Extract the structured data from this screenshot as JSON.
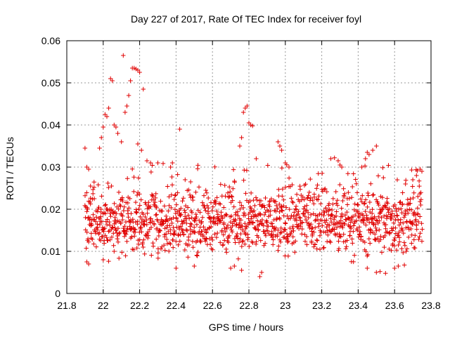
{
  "chart_data": {
    "type": "scatter",
    "title": "Day 227 of 2017, Rate Of TEC Index for receiver foyl",
    "xlabel": "GPS time / hours",
    "ylabel": "ROTI / TECUs",
    "xlim": [
      21.8,
      23.8
    ],
    "ylim": [
      0,
      0.06
    ],
    "xticks": [
      "21.8",
      "22",
      "22.2",
      "22.4",
      "22.6",
      "22.8",
      "23",
      "23.2",
      "23.4",
      "23.6",
      "23.8"
    ],
    "yticks": [
      "0",
      "0.01",
      "0.02",
      "0.03",
      "0.04",
      "0.05",
      "0.06"
    ],
    "grid": true,
    "marker": "+",
    "marker_color": "#e00000",
    "series": [
      {
        "name": "ROTI",
        "x_start": 21.9,
        "x_end": 23.75,
        "points": [
          [
            21.9,
            0.0345
          ],
          [
            21.91,
            0.03
          ],
          [
            21.92,
            0.0295
          ],
          [
            21.91,
            0.0075
          ],
          [
            21.92,
            0.007
          ],
          [
            21.93,
            0.0255
          ],
          [
            21.95,
            0.0252
          ],
          [
            21.98,
            0.0345
          ],
          [
            21.99,
            0.037
          ],
          [
            22.0,
            0.0395
          ],
          [
            22.01,
            0.0425
          ],
          [
            22.02,
            0.042
          ],
          [
            22.03,
            0.044
          ],
          [
            22.04,
            0.051
          ],
          [
            22.05,
            0.0505
          ],
          [
            22.06,
            0.04
          ],
          [
            22.07,
            0.0395
          ],
          [
            22.08,
            0.038
          ],
          [
            22.1,
            0.036
          ],
          [
            22.11,
            0.0565
          ],
          [
            22.12,
            0.043
          ],
          [
            22.13,
            0.0445
          ],
          [
            22.14,
            0.047
          ],
          [
            22.15,
            0.0505
          ],
          [
            22.16,
            0.0535
          ],
          [
            22.17,
            0.0535
          ],
          [
            22.18,
            0.0533
          ],
          [
            22.19,
            0.053
          ],
          [
            22.2,
            0.0525
          ],
          [
            22.22,
            0.0485
          ],
          [
            22.19,
            0.0355
          ],
          [
            22.21,
            0.034
          ],
          [
            22.24,
            0.0315
          ],
          [
            22.26,
            0.031
          ],
          [
            22.3,
            0.031
          ],
          [
            22.37,
            0.03
          ],
          [
            22.38,
            0.031
          ],
          [
            22.42,
            0.039
          ],
          [
            22.45,
            0.027
          ],
          [
            22.48,
            0.0265
          ],
          [
            22.77,
            0.043
          ],
          [
            22.78,
            0.044
          ],
          [
            22.79,
            0.0445
          ],
          [
            22.8,
            0.0405
          ],
          [
            22.81,
            0.04
          ],
          [
            22.82,
            0.0398
          ],
          [
            22.76,
            0.037
          ],
          [
            22.75,
            0.035
          ],
          [
            22.84,
            0.032
          ],
          [
            22.96,
            0.036
          ],
          [
            22.97,
            0.035
          ],
          [
            22.98,
            0.034
          ],
          [
            23.0,
            0.031
          ],
          [
            23.02,
            0.03
          ],
          [
            23.25,
            0.032
          ],
          [
            23.27,
            0.0322
          ],
          [
            23.29,
            0.0315
          ],
          [
            23.3,
            0.0305
          ],
          [
            23.31,
            0.03
          ],
          [
            23.45,
            0.0335
          ],
          [
            23.46,
            0.033
          ],
          [
            23.48,
            0.034
          ],
          [
            23.5,
            0.035
          ],
          [
            23.44,
            0.032
          ],
          [
            23.42,
            0.03
          ],
          [
            23.74,
            0.0295
          ],
          [
            23.75,
            0.029
          ],
          [
            23.72,
            0.028
          ],
          [
            23.7,
            0.027
          ],
          [
            23.66,
            0.026
          ],
          [
            22.86,
            0.004
          ],
          [
            22.87,
            0.005
          ],
          [
            22.76,
            0.0055
          ],
          [
            22.7,
            0.006
          ],
          [
            22.72,
            0.0065
          ],
          [
            22.4,
            0.006
          ],
          [
            22.5,
            0.0065
          ],
          [
            23.5,
            0.005
          ],
          [
            23.52,
            0.0052
          ],
          [
            23.55,
            0.0048
          ],
          [
            23.45,
            0.006
          ],
          [
            23.6,
            0.006
          ],
          [
            23.62,
            0.0065
          ],
          [
            22.0,
            0.008
          ],
          [
            22.06,
            0.01
          ]
        ]
      }
    ]
  }
}
